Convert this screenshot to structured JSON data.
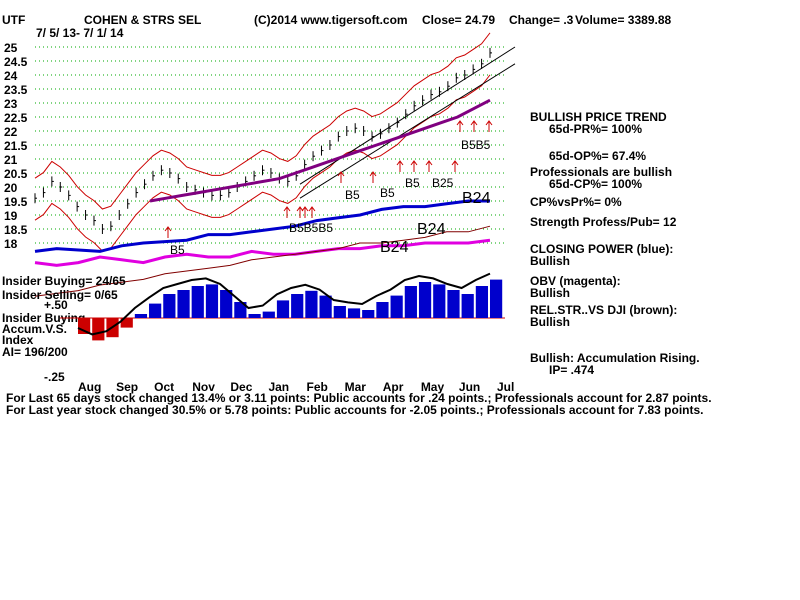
{
  "header": {
    "ticker": "UTF",
    "company": "COHEN & STRS SEL",
    "copyright": "(C)2014 www.tigersoft.com",
    "close": "Close= 24.79",
    "change": "Change= .3",
    "volume": "Volume= 3389.88",
    "date_range": "7/ 5/ 13- 7/ 1/ 14"
  },
  "colors": {
    "price_bars": "#000000",
    "channel": "#000000",
    "band": "#cc0000",
    "ma": "#800080",
    "closing_power": "#0000cc",
    "obv": "#e000e0",
    "relstr": "#800000",
    "accum_positive": "#0000cc",
    "accum_negative": "#cc0000",
    "signal_arrows": "#cc0000",
    "grid": "#00aa00",
    "ref_line": "#cc0000"
  },
  "chart_data": {
    "type": "line",
    "title": "COHEN & STRS SEL",
    "ylim": [
      18,
      25
    ],
    "y_ticks": [
      "25",
      "24.5",
      "24",
      "23.5",
      "23",
      "22.5",
      "22",
      "21.5",
      "21",
      "20.5",
      "20",
      "19.5",
      "19",
      "18.5",
      "18"
    ],
    "x_ticks": [
      "Aug",
      "Sep",
      "Oct",
      "Nov",
      "Dec",
      "Jan",
      "Feb",
      "Mar",
      "Apr",
      "May",
      "Jun",
      "Jul"
    ],
    "price_close": [
      19.6,
      19.8,
      20.2,
      20.0,
      19.7,
      19.3,
      19.0,
      18.8,
      18.5,
      18.6,
      19.0,
      19.4,
      19.8,
      20.1,
      20.4,
      20.6,
      20.5,
      20.3,
      20.0,
      19.9,
      19.8,
      19.7,
      19.7,
      19.8,
      20.0,
      20.2,
      20.4,
      20.6,
      20.5,
      20.3,
      20.2,
      20.4,
      20.8,
      21.1,
      21.3,
      21.5,
      21.8,
      22.0,
      22.1,
      22.0,
      21.8,
      21.9,
      22.1,
      22.3,
      22.6,
      22.9,
      23.1,
      23.3,
      23.4,
      23.6,
      23.9,
      24.0,
      24.2,
      24.4,
      24.79
    ],
    "ma_line": [
      19.5,
      19.6,
      19.7,
      19.8,
      19.9,
      20.0,
      20.1,
      20.2,
      20.3,
      20.5,
      20.7,
      20.9,
      21.1,
      21.3,
      21.5,
      21.7,
      21.9,
      22.1,
      22.3,
      22.5,
      22.8,
      23.1
    ],
    "closing_power": [
      17.7,
      17.8,
      17.75,
      17.7,
      17.9,
      18.0,
      18.05,
      18.1,
      18.3,
      18.3,
      18.4,
      18.5,
      18.6,
      18.8,
      18.9,
      19.0,
      19.2,
      19.3,
      19.3,
      19.4,
      19.5,
      19.5
    ],
    "obv": [
      17.3,
      17.2,
      17.3,
      17.5,
      17.4,
      17.3,
      17.5,
      17.6,
      17.5,
      17.5,
      17.7,
      17.6,
      17.6,
      17.7,
      17.8,
      17.8,
      17.9,
      17.9,
      18.0,
      18.0,
      18.0,
      18.1
    ],
    "relstr": [
      16.1,
      16.2,
      16.3,
      16.5,
      16.6,
      16.7,
      16.9,
      17.0,
      17.1,
      17.2,
      17.4,
      17.5,
      17.6,
      17.7,
      17.8,
      18.0,
      18.0,
      18.1,
      18.2,
      18.4,
      18.4,
      18.6
    ],
    "accumulation": [
      -0.2,
      -0.28,
      -0.24,
      -0.12,
      0.05,
      0.18,
      0.3,
      0.35,
      0.4,
      0.42,
      0.35,
      0.2,
      0.05,
      0.08,
      0.22,
      0.3,
      0.34,
      0.28,
      0.15,
      0.12,
      0.1,
      0.2,
      0.28,
      0.4,
      0.45,
      0.42,
      0.35,
      0.3,
      0.4,
      0.48
    ],
    "accum_ticks": [
      "+.50",
      "-.25"
    ],
    "signals": [
      "B5",
      "B5B5B5",
      "B5",
      "B5",
      "B5",
      "B25",
      "B5B5",
      "B24",
      "B24",
      "B24"
    ]
  },
  "left_labels": {
    "insider_buying": "Insider Buying= 24/65",
    "insider_selling": "Insider Selling= 0/65",
    "plus50": "+.50",
    "insider_buying2": "Insider Buying",
    "accum_vs": "Accum.V.S.",
    "index": "Index",
    "ai": "AI= 196/200",
    "minus25": "-.25"
  },
  "signals": {
    "b5_a": "B5",
    "b5_b": "B5",
    "b5_c": "B5",
    "b5b5": "B5B5",
    "b25": "B25",
    "b5_cluster": "B5B5B5",
    "b5_d": "B5",
    "b24_a": "B24",
    "b24_b": "B24",
    "b24_c": "B24"
  },
  "panel": {
    "line1": "BULLISH PRICE TREND",
    "line2": "65d-PR%= 100%",
    "line3": "65d-OP%= 67.4%",
    "line4": "Professionals are bullish",
    "line5": "65d-CP%= 100%",
    "line6": "CP%vsPr%= 0%",
    "line7": "Strength Profess/Pub= 12",
    "line8": "CLOSING POWER (blue):",
    "line9": "Bullish",
    "line10": "OBV (magenta):",
    "line11": "Bullish",
    "line12": "REL.STR..VS DJI (brown):",
    "line13": "Bullish",
    "line14": "Bullish: Accumulation Rising.",
    "line15": "IP= .474"
  },
  "footer": {
    "line1": "For Last 65 days stock changed 13.4% or 3.11 points: Public accounts for .24 points.; Professionals account for 2.87 points.",
    "line2": "For Last year stock changed 30.5% or 5.78 points: Public accounts for -2.05 points.; Professionals account for 7.83 points."
  }
}
